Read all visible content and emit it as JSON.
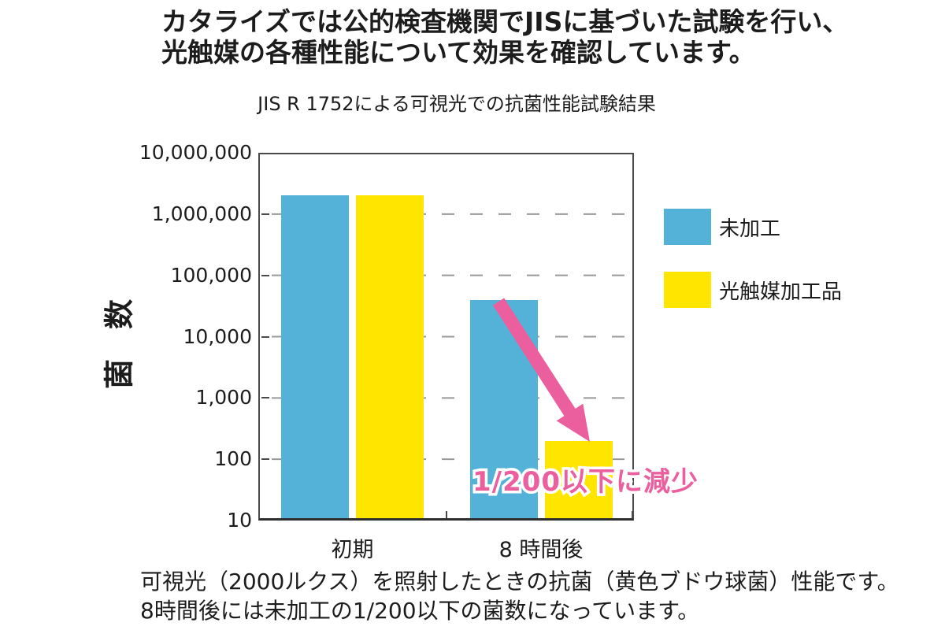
{
  "heading": {
    "line1": "カタライズでは公的検査機関でJISに基づいた試験を行い、",
    "line2": "光触媒の各種性能について効果を確認しています。"
  },
  "chart": {
    "title": "JIS R 1752による可視光での抗菌性能試験結果",
    "y_axis_label": "菌　数"
  },
  "legend": {
    "items": [
      {
        "label": "未加工",
        "color": "#54b2d8"
      },
      {
        "label": "光触媒加工品",
        "color": "#ffe500"
      }
    ]
  },
  "annotation": {
    "text": "1/200以下に減少",
    "color": "#ec5f9e"
  },
  "caption": {
    "line1": "可視光（2000ルクス）を照射したときの抗菌（黄色ブドウ球菌）性能です。",
    "line2": "8時間後には未加工の1/200以下の菌数になっています。"
  },
  "colors": {
    "grid": "#999999",
    "axis": "#4a4a4a",
    "text": "#1c1c1c"
  },
  "chart_data": {
    "type": "bar",
    "title": "JIS R 1752による可視光での抗菌性能試験結果",
    "categories": [
      "初期",
      "8 時間後"
    ],
    "series": [
      {
        "name": "未加工",
        "color": "#54b2d8",
        "values": [
          2000000,
          40000
        ]
      },
      {
        "name": "光触媒加工品",
        "color": "#ffe500",
        "values": [
          2000000,
          200
        ]
      }
    ],
    "xlabel": "",
    "ylabel": "菌　数",
    "yscale": "log",
    "ylim": [
      10,
      10000000
    ],
    "ytick_values": [
      10000000,
      1000000,
      100000,
      10000,
      1000,
      100,
      10
    ],
    "ytick_labels": [
      "10,000,000",
      "1,000,000",
      "100,000",
      "10,000",
      "1,000",
      "100",
      "10"
    ],
    "grid": "dashed-horizontal",
    "legend_position": "right",
    "annotation": "1/200以下に減少"
  }
}
